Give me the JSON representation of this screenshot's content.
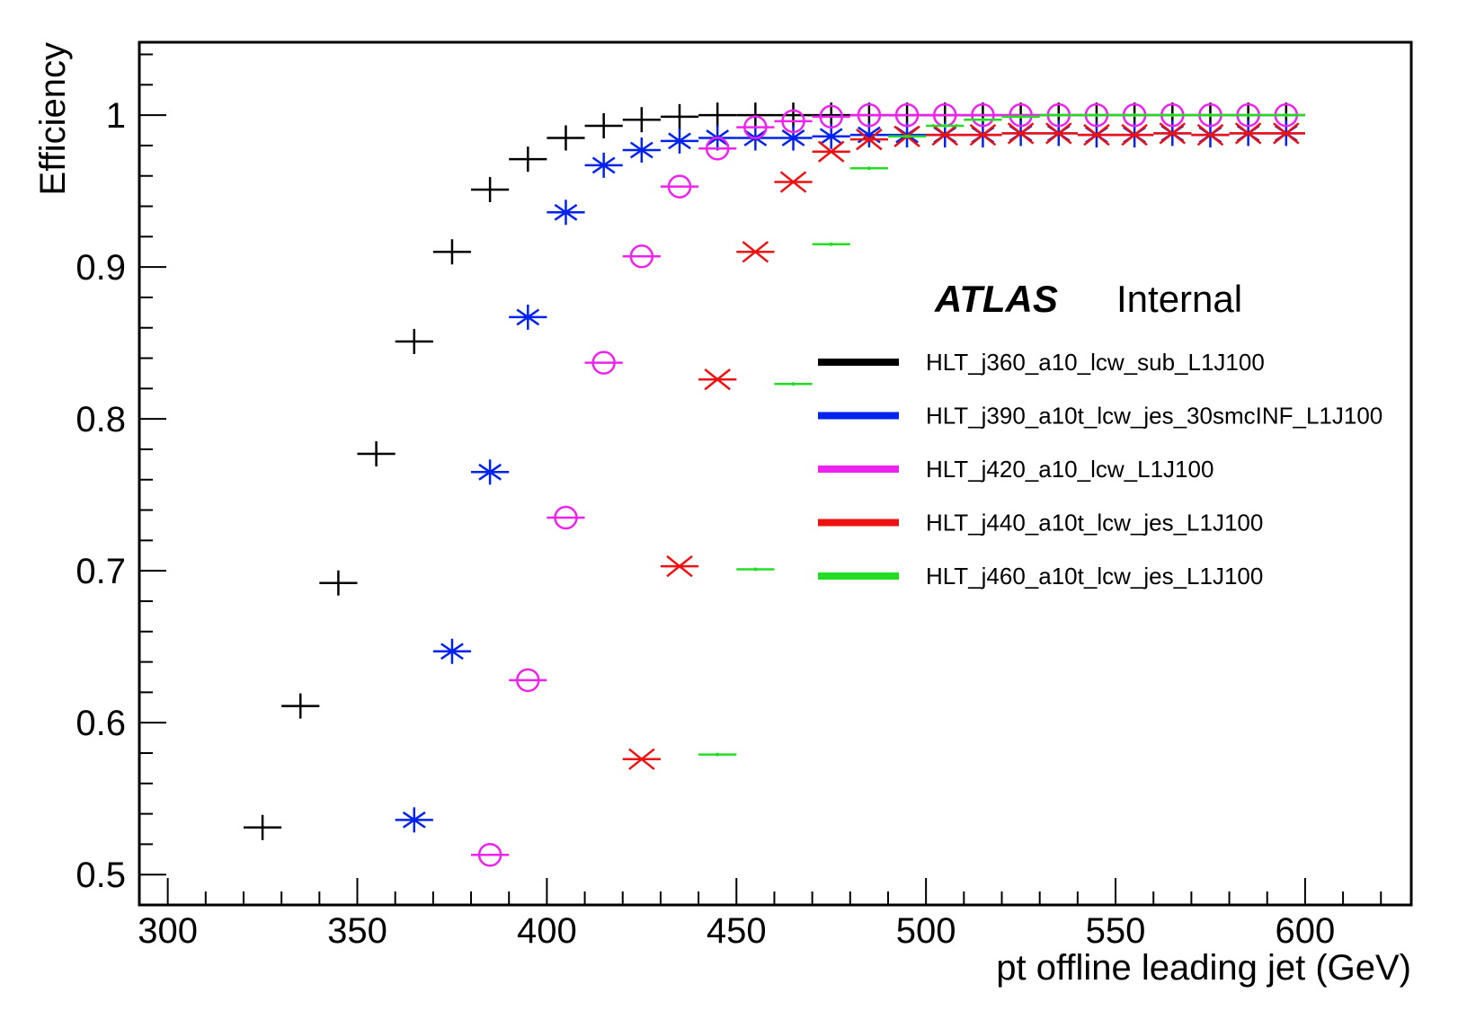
{
  "chart_data": {
    "type": "scatter",
    "title": "",
    "xlabel": "pt offline leading jet (GeV)",
    "ylabel": "Efficiency",
    "xlim": [
      292.5,
      628
    ],
    "ylim": [
      0.48,
      1.048
    ],
    "x_ticks": [
      300,
      350,
      400,
      450,
      500,
      550,
      600
    ],
    "x_tick_labels": [
      "300",
      "350",
      "400",
      "450",
      "500",
      "550",
      "600"
    ],
    "y_ticks": [
      0.5,
      0.6,
      0.7,
      0.8,
      0.9,
      1.0
    ],
    "y_tick_labels": [
      "0.5",
      "0.6",
      "0.7",
      "0.8",
      "0.9",
      "1"
    ],
    "bin_width": 10,
    "grid": false,
    "legend_position": "right",
    "atlas_label": "ATLAS",
    "atlas_status": "Internal",
    "series": [
      {
        "name": "HLT_j360_a10_lcw_sub_L1J100",
        "color": "#000000",
        "marker": "plus",
        "x": [
          325,
          335,
          345,
          355,
          365,
          375,
          385,
          395,
          405,
          415,
          425,
          435,
          445,
          455,
          465,
          475,
          485,
          495,
          505,
          515,
          525,
          535,
          545,
          555,
          565,
          575,
          585,
          595
        ],
        "y": [
          0.531,
          0.611,
          0.692,
          0.777,
          0.851,
          0.91,
          0.951,
          0.971,
          0.985,
          0.993,
          0.997,
          0.999,
          1.0,
          1.0,
          1.0,
          1.0,
          1.0,
          1.0,
          1.0,
          1.0,
          1.0,
          1.0,
          1.0,
          1.0,
          1.0,
          1.0,
          1.0,
          1.0
        ]
      },
      {
        "name": "HLT_j390_a10t_lcw_jes_30smcINF_L1J100",
        "color": "#0022ee",
        "marker": "star",
        "x": [
          365,
          375,
          385,
          395,
          405,
          415,
          425,
          435,
          445,
          455,
          465,
          475,
          485,
          495,
          505,
          515,
          525,
          535,
          545,
          555,
          565,
          575,
          585,
          595
        ],
        "y": [
          0.536,
          0.647,
          0.765,
          0.867,
          0.936,
          0.967,
          0.977,
          0.983,
          0.985,
          0.985,
          0.985,
          0.986,
          0.987,
          0.987,
          0.987,
          0.987,
          0.988,
          0.988,
          0.987,
          0.987,
          0.988,
          0.987,
          0.988,
          0.988
        ]
      },
      {
        "name": "HLT_j420_a10_lcw_L1J100",
        "color": "#ee22ee",
        "marker": "circle",
        "x": [
          385,
          395,
          405,
          415,
          425,
          435,
          445,
          455,
          465,
          475,
          485,
          495,
          505,
          515,
          525,
          535,
          545,
          555,
          565,
          575,
          585,
          595
        ],
        "y": [
          0.513,
          0.628,
          0.735,
          0.837,
          0.907,
          0.953,
          0.978,
          0.992,
          0.996,
          0.999,
          1.0,
          1.0,
          1.0,
          1.0,
          1.0,
          1.0,
          1.0,
          1.0,
          1.0,
          1.0,
          1.0,
          1.0
        ]
      },
      {
        "name": "HLT_j440_a10t_lcw_jes_L1J100",
        "color": "#ee1111",
        "marker": "cross",
        "x": [
          425,
          435,
          445,
          455,
          465,
          475,
          485,
          495,
          505,
          515,
          525,
          535,
          545,
          555,
          565,
          575,
          585,
          595
        ],
        "y": [
          0.576,
          0.703,
          0.826,
          0.91,
          0.956,
          0.976,
          0.984,
          0.986,
          0.987,
          0.987,
          0.988,
          0.988,
          0.987,
          0.987,
          0.988,
          0.987,
          0.988,
          0.988
        ]
      },
      {
        "name": "HLT_j460_a10t_lcw_jes_L1J100",
        "color": "#22dd22",
        "marker": "dot",
        "x": [
          445,
          455,
          465,
          475,
          485,
          495,
          505,
          515,
          525,
          535,
          545,
          555,
          565,
          575,
          585,
          595
        ],
        "y": [
          0.579,
          0.701,
          0.823,
          0.915,
          0.965,
          0.986,
          0.993,
          0.997,
          0.999,
          1.0,
          1.0,
          1.0,
          1.0,
          1.0,
          1.0,
          1.0
        ]
      }
    ]
  }
}
